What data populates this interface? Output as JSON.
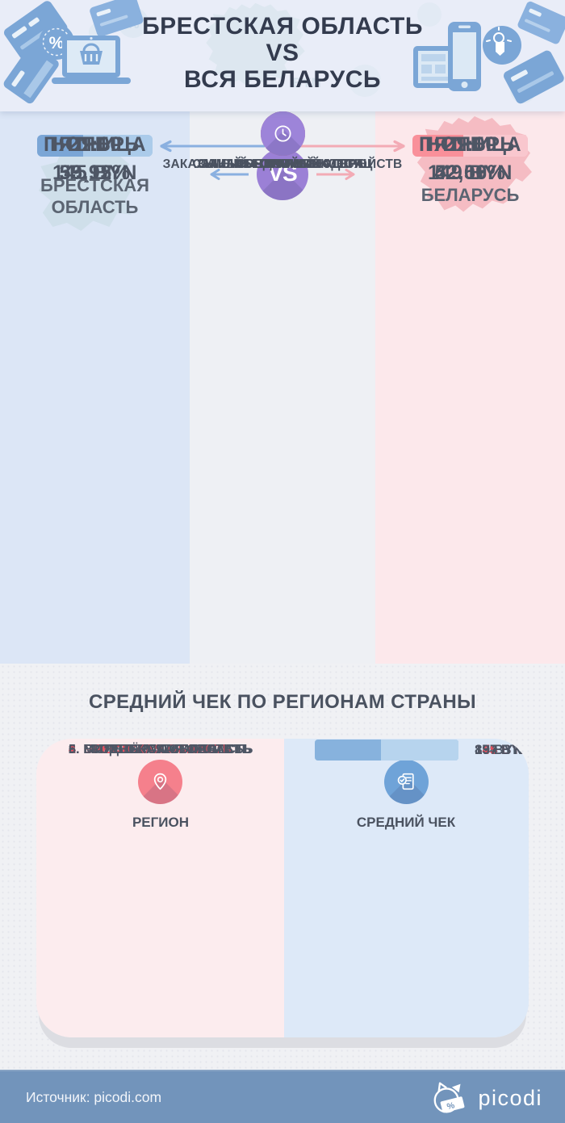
{
  "colors": {
    "header-bg": "#e9edf8",
    "title-dark": "#333b4e",
    "text-dark": "#4e5665",
    "label-dark": "#4a5260",
    "col-left": "#dce6f6",
    "col-center": "#eef0f4",
    "col-right": "#fce8eb",
    "map-blue": "#cfdfea",
    "map-pink": "#f5bcc3",
    "vs-purple": "#9b80d6",
    "arrow-blue": "#8ab0e0",
    "arrow-pink": "#f3abb5",
    "bar-blue-dark": "#7ba6d6",
    "bar-blue-light": "#abcbea",
    "bar-pink-dark": "#f9909a",
    "bar-pink-light": "#f9c7ce",
    "card-pink": "#fcecee",
    "card-blue": "#dde9f8",
    "region-bar-fill": "#87b2dd",
    "region-bar-track": "#b7d4ee",
    "highlight-red": "#e8505f",
    "section-bg": "#f0f1f4",
    "footer-bg": "#7294bb",
    "accent-red": "#f5808c",
    "accent-blue": "#6fa3d8",
    "accent-purple": "#9d84d9"
  },
  "header": {
    "title_line1": "БРЕСТСКАЯ ОБЛАСТЬ",
    "title_line2": "VS",
    "title_line3": "ВСЯ БЕЛАРУСЬ"
  },
  "comparison": {
    "left_title_line1": "БРЕСТСКАЯ",
    "left_title_line2": "ОБЛАСТЬ",
    "vs_label": "VS",
    "right_title": "БЕЛАРУСЬ",
    "rows": [
      {
        "label": "СРЕДНИЙ ЧЕК",
        "icon": "receipt-icon",
        "icon_color": "#f5808c",
        "left_value": "145 BYN",
        "right_value": "149 BYN",
        "left_fill": 64,
        "right_fill": 72
      },
      {
        "label": "ЗАКАЗЫ С МОБИЛЬНЫХ УСТРОЙСТВ",
        "icon": "smartphone-icon",
        "icon_color": "#6fa3d8",
        "left_value": "55,12%",
        "right_value": "52,09%",
        "left_fill": 54,
        "right_fill": 52
      },
      {
        "label": "ЗАКАЗЫ С КОМПЬЮТЕРА",
        "icon": "laptop-icon",
        "icon_color": "#9d84d9",
        "left_value": "39,95%",
        "right_value": "42,56%",
        "left_fill": 40,
        "right_fill": 44
      },
      {
        "label": "САМЫЙ «ГОРЯЧИЙ» МЕСЯЦ",
        "icon": "calendar-icon",
        "icon_color": "#6fa3d8",
        "left_value": "НОЯБРЬ",
        "right_value": "НОЯБРЬ"
      },
      {
        "label": "САМЫЙ «ГОРЯЧИЙ» ДЕНЬ",
        "icon": "calendar-check-icon",
        "icon_color": "#f5808c",
        "left_value": "ПЯТНИЦА",
        "right_value": "ПЯТНИЦА"
      },
      {
        "label": "ЧАС ПИК",
        "icon": "clock-icon",
        "icon_color": "#9d84d9",
        "left_value": "21:00",
        "right_value": "21:00"
      }
    ]
  },
  "regions": {
    "heading": "СРЕДНИЙ ЧЕК ПО РЕГИОНАМ СТРАНЫ",
    "col_region": "РЕГИОН",
    "col_check": "СРЕДНИЙ ЧЕК",
    "items": [
      {
        "label": "1. МОГИЛЁВСКАЯ ОБЛАСТЬ",
        "value": "194 BYN",
        "fill": 100,
        "highlight": false
      },
      {
        "label": "2. МИНСКАЯ ОБЛАСТЬ",
        "value": "179 BYN",
        "fill": 92.3,
        "highlight": false
      },
      {
        "label": "3. ГОМЕЛЬСКАЯ ОБЛАСТЬ",
        "value": "149 BYN",
        "fill": 76.8,
        "highlight": false
      },
      {
        "label": "4. БРЕСТСКАЯ ОБЛАСТЬ",
        "value": "145 BYN",
        "fill": 74.7,
        "highlight": true
      },
      {
        "label": "5. ГРОДНЕНСКАЯ ОБЛАСТЬ",
        "value": "137 BYN",
        "fill": 70.6,
        "highlight": false
      },
      {
        "label": "6. ВИТЕБСКАЯ ОБЛАСТЬ",
        "value": "89 BYN",
        "fill": 45.9,
        "highlight": false
      }
    ]
  },
  "footer": {
    "source": "Источник: picodi.com",
    "brand": "picodi"
  },
  "chart_data": [
    {
      "type": "table",
      "title": "Брестская область vs Вся Беларусь",
      "categories": [
        "Средний чек",
        "Заказы с мобильных устройств",
        "Заказы с компьютера",
        "Самый «горячий» месяц",
        "Самый «горячий» день",
        "Час пик"
      ],
      "series": [
        {
          "name": "Брестская область",
          "values": [
            "145 BYN",
            "55,12%",
            "39,95%",
            "Ноябрь",
            "Пятница",
            "21:00"
          ]
        },
        {
          "name": "Беларусь",
          "values": [
            "149 BYN",
            "52,09%",
            "42,56%",
            "Ноябрь",
            "Пятница",
            "21:00"
          ]
        }
      ]
    },
    {
      "type": "bar",
      "title": "Средний чек по регионам страны",
      "categories": [
        "Могилёвская область",
        "Минская область",
        "Гомельская область",
        "Брестская область",
        "Гродненская область",
        "Витебская область"
      ],
      "values": [
        194,
        179,
        149,
        145,
        137,
        89
      ],
      "xlabel": "",
      "ylabel": "BYN",
      "xlim": [
        0,
        194
      ],
      "legend_position": "none",
      "grid": false,
      "highlight_category": "Брестская область"
    }
  ]
}
